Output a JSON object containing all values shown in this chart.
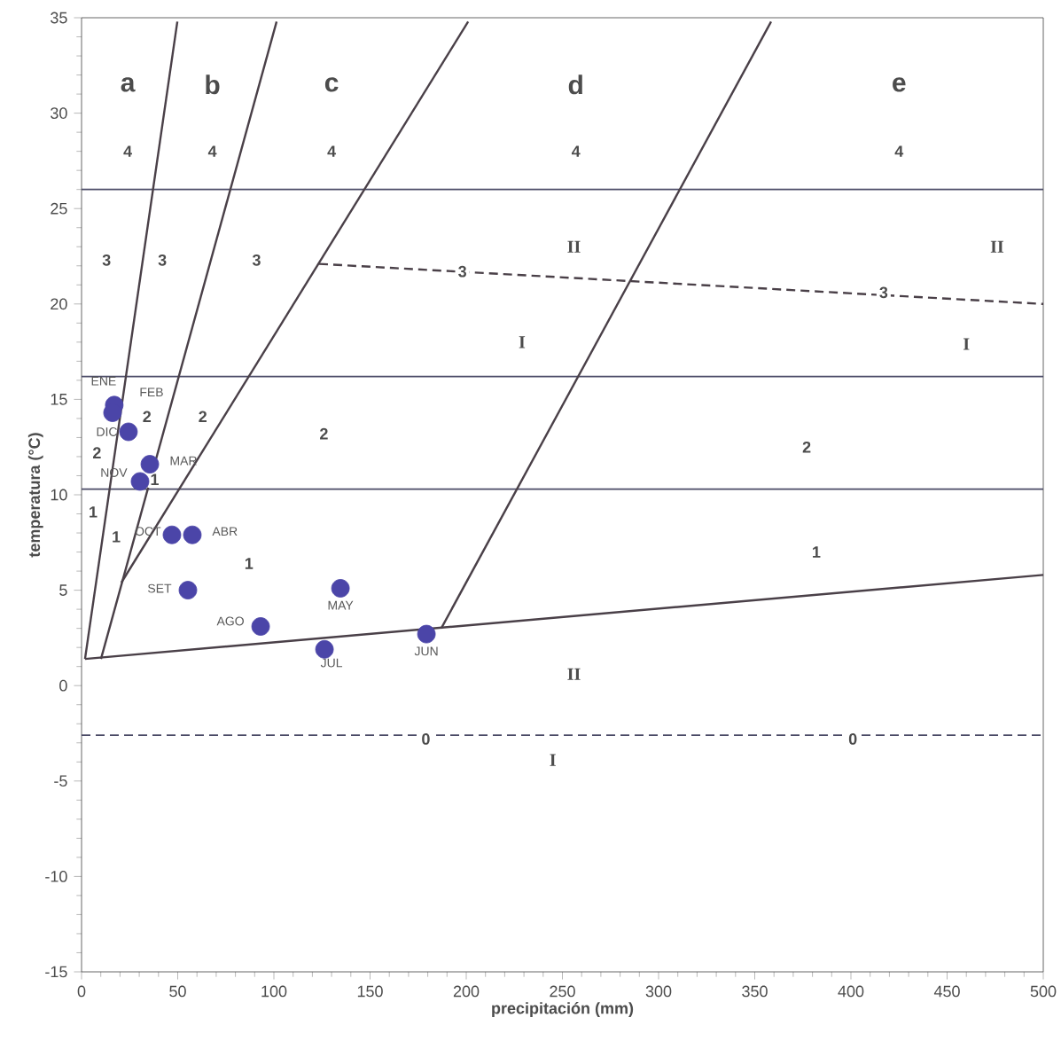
{
  "chart_data": {
    "type": "scatter",
    "xlabel": "precipitación (mm)",
    "ylabel": "temperatura (°C)",
    "xlim": [
      0,
      500
    ],
    "ylim": [
      -15,
      35
    ],
    "xticks": [
      0,
      50,
      100,
      150,
      200,
      250,
      300,
      350,
      400,
      450,
      500
    ],
    "yticks": [
      -15,
      -10,
      -5,
      0,
      5,
      10,
      15,
      20,
      25,
      30,
      35
    ],
    "grid": false,
    "series": [
      {
        "marker": "circle",
        "color": "#4b45a8",
        "x": [
          17,
          16.1,
          35.5,
          57.6,
          134.6,
          179.3,
          126.3,
          93.1,
          55.3,
          47,
          30.4,
          24.4
        ],
        "values": [
          14.7,
          14.3,
          11.6,
          7.9,
          5.1,
          2.7,
          1.9,
          3.1,
          5.0,
          7.9,
          10.7,
          13.3
        ]
      },
      {
        "type": "line",
        "marker": "none",
        "line_style": "solid",
        "color": "#4a4048",
        "x": [
          1.8,
          49.8
        ],
        "values": [
          1.4,
          34.8
        ]
      },
      {
        "type": "line",
        "marker": "none",
        "line_style": "solid",
        "color": "#4a4048",
        "x": [
          10.1,
          101.4
        ],
        "values": [
          1.4,
          34.8
        ]
      },
      {
        "type": "line",
        "marker": "none",
        "line_style": "solid",
        "color": "#4a4048",
        "x": [
          20.7,
          201
        ],
        "values": [
          5.4,
          34.8
        ]
      },
      {
        "type": "line",
        "marker": "none",
        "line_style": "solid",
        "color": "#4a4048",
        "x": [
          187,
          358.5
        ],
        "values": [
          3.0,
          34.8
        ]
      },
      {
        "type": "line",
        "marker": "none",
        "line_style": "solid",
        "color": "#4a4048",
        "x": [
          1.8,
          500
        ],
        "values": [
          1.4,
          5.8
        ]
      },
      {
        "type": "line",
        "marker": "none",
        "line_style": "dashed",
        "color": "#4a4048",
        "x": [
          123.5,
          500
        ],
        "values": [
          22.1,
          20.0
        ]
      }
    ],
    "ref_lines": [
      {
        "axis": "y",
        "value": 26,
        "color": "#4a4a66",
        "line_style": "solid"
      },
      {
        "axis": "y",
        "value": 16.2,
        "color": "#4a4a66",
        "line_style": "solid"
      },
      {
        "axis": "y",
        "value": 10.3,
        "color": "#4a4a66",
        "line_style": "solid"
      },
      {
        "axis": "y",
        "value": -2.6,
        "color": "#4a4a66",
        "line_style": "dashed"
      }
    ],
    "annotations": [
      {
        "text": "ENE",
        "x": 17,
        "y": 14.7
      },
      {
        "text": "FEB",
        "x": 16.1,
        "y": 14.3
      },
      {
        "text": "MAR",
        "x": 35.5,
        "y": 11.6
      },
      {
        "text": "ABR",
        "x": 57.6,
        "y": 7.9
      },
      {
        "text": "MAY",
        "x": 134.6,
        "y": 5.1
      },
      {
        "text": "JUN",
        "x": 179.3,
        "y": 2.7
      },
      {
        "text": "JUL",
        "x": 126.3,
        "y": 1.9
      },
      {
        "text": "AGO",
        "x": 93.1,
        "y": 3.1
      },
      {
        "text": "SET",
        "x": 55.3,
        "y": 5.0
      },
      {
        "text": "OCT",
        "x": 47,
        "y": 7.9
      },
      {
        "text": "NOV",
        "x": 30.4,
        "y": 10.7
      },
      {
        "text": "DIC",
        "x": 24.4,
        "y": 13.3
      },
      "a",
      "b",
      "c",
      "d",
      "e",
      {
        "text": "4",
        "x": 24,
        "y": 28
      },
      {
        "text": "4",
        "x": 68,
        "y": 28
      },
      {
        "text": "4",
        "x": 130,
        "y": 28
      },
      {
        "text": "4",
        "x": 257,
        "y": 28
      },
      {
        "text": "4",
        "x": 425,
        "y": 28
      },
      {
        "text": "3",
        "x": 13,
        "y": 22.3
      },
      {
        "text": "3",
        "x": 42,
        "y": 22.3
      },
      {
        "text": "3",
        "x": 91,
        "y": 22.3
      },
      {
        "text": "3",
        "x": 198,
        "y": 21.7
      },
      {
        "text": "3",
        "x": 417,
        "y": 20.6
      },
      {
        "text": "2",
        "x": 34,
        "y": 14.1
      },
      {
        "text": "2",
        "x": 63,
        "y": 14.1
      },
      {
        "text": "2",
        "x": 126,
        "y": 13.2
      },
      {
        "text": "2",
        "x": 377,
        "y": 12.5
      },
      {
        "text": "2",
        "x": 8,
        "y": 12.2
      },
      {
        "text": "1",
        "x": 6,
        "y": 9.1
      },
      {
        "text": "1",
        "x": 38,
        "y": 10.8
      },
      {
        "text": "1",
        "x": 18,
        "y": 7.8
      },
      {
        "text": "1",
        "x": 87,
        "y": 6.4
      },
      {
        "text": "1",
        "x": 382,
        "y": 7.0
      },
      {
        "text": "0",
        "x": 179,
        "y": -2.8
      },
      {
        "text": "0",
        "x": 401,
        "y": -2.8
      },
      "II",
      "II",
      "I",
      "I",
      "II",
      "I"
    ]
  }
}
